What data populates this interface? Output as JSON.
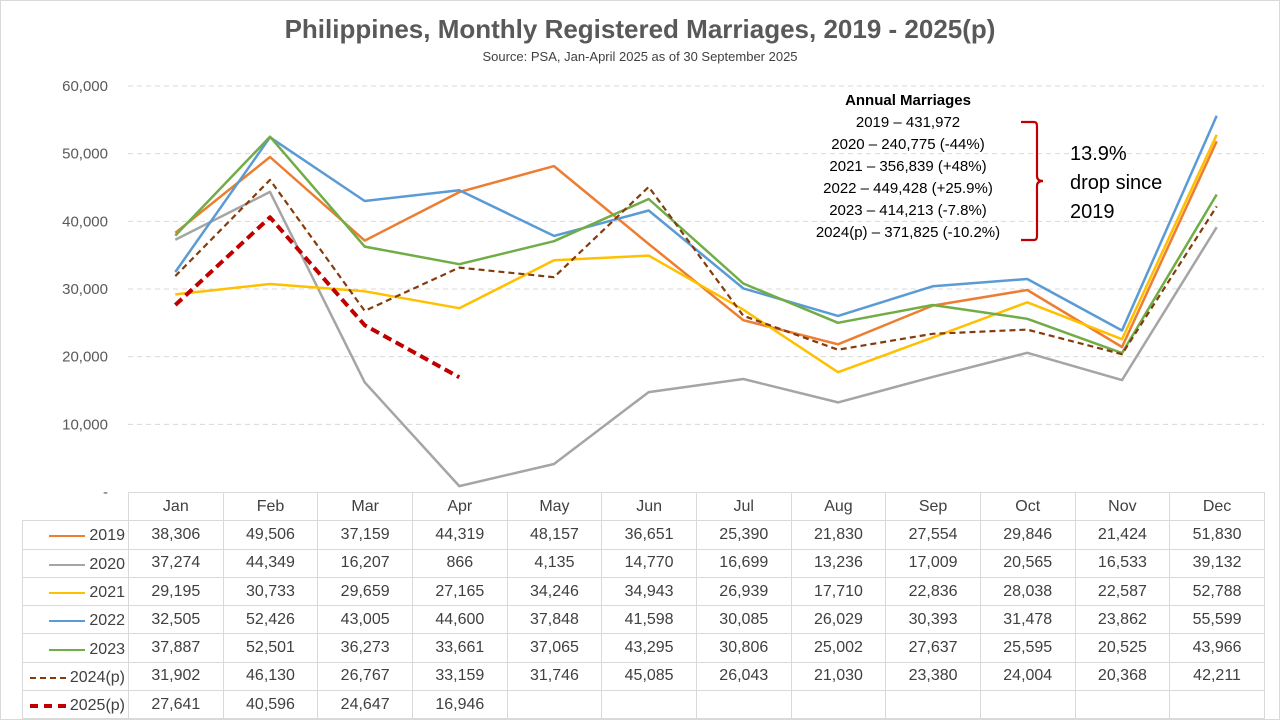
{
  "chart_data": {
    "type": "line",
    "title": "Philippines, Monthly Registered Marriages, 2019 - 2025(p)",
    "subtitle": "Source: PSA, Jan-April 2025 as of 30 September 2025",
    "categories": [
      "Jan",
      "Feb",
      "Mar",
      "Apr",
      "May",
      "Jun",
      "Jul",
      "Aug",
      "Sep",
      "Oct",
      "Nov",
      "Dec"
    ],
    "ylim": [
      0,
      60000
    ],
    "yticks": [
      0,
      10000,
      20000,
      30000,
      40000,
      50000,
      60000
    ],
    "ytick_labels": [
      "-",
      "10,000",
      "20,000",
      "30,000",
      "40,000",
      "50,000",
      "60,000"
    ],
    "grid": true,
    "series": [
      {
        "name": "2019",
        "color": "#ed7d31",
        "dash": "solid",
        "values": [
          38306,
          49506,
          37159,
          44319,
          48157,
          36651,
          25390,
          21830,
          27554,
          29846,
          21424,
          51830
        ]
      },
      {
        "name": "2020",
        "color": "#a5a5a5",
        "dash": "solid",
        "values": [
          37274,
          44349,
          16207,
          866,
          4135,
          14770,
          16699,
          13236,
          17009,
          20565,
          16533,
          39132
        ]
      },
      {
        "name": "2021",
        "color": "#ffc000",
        "dash": "solid",
        "values": [
          29195,
          30733,
          29659,
          27165,
          34246,
          34943,
          26939,
          17710,
          22836,
          28038,
          22587,
          52788
        ]
      },
      {
        "name": "2022",
        "color": "#5b9bd5",
        "dash": "solid",
        "values": [
          32505,
          52426,
          43005,
          44600,
          37848,
          41598,
          30085,
          26029,
          30393,
          31478,
          23862,
          55599
        ]
      },
      {
        "name": "2023",
        "color": "#70ad47",
        "dash": "solid",
        "values": [
          37887,
          52501,
          36273,
          33661,
          37065,
          43295,
          30806,
          25002,
          27637,
          25595,
          20525,
          43966
        ]
      },
      {
        "name": "2024(p)",
        "color": "#843c0c",
        "dash": "dashed",
        "values": [
          31902,
          46130,
          26767,
          33159,
          31746,
          45085,
          26043,
          21030,
          23380,
          24004,
          20368,
          42211
        ]
      },
      {
        "name": "2025(p)",
        "color": "#c00000",
        "dash": "dashed-bold",
        "values": [
          27641,
          40596,
          24647,
          16946,
          null,
          null,
          null,
          null,
          null,
          null,
          null,
          null
        ]
      }
    ],
    "table_cells": [
      [
        "38,306",
        "49,506",
        "37,159",
        "44,319",
        "48,157",
        "36,651",
        "25,390",
        "21,830",
        "27,554",
        "29,846",
        "21,424",
        "51,830"
      ],
      [
        "37,274",
        "44,349",
        "16,207",
        "866",
        "4,135",
        "14,770",
        "16,699",
        "13,236",
        "17,009",
        "20,565",
        "16,533",
        "39,132"
      ],
      [
        "29,195",
        "30,733",
        "29,659",
        "27,165",
        "34,246",
        "34,943",
        "26,939",
        "17,710",
        "22,836",
        "28,038",
        "22,587",
        "52,788"
      ],
      [
        "32,505",
        "52,426",
        "43,005",
        "44,600",
        "37,848",
        "41,598",
        "30,085",
        "26,029",
        "30,393",
        "31,478",
        "23,862",
        "55,599"
      ],
      [
        "37,887",
        "52,501",
        "36,273",
        "33,661",
        "37,065",
        "43,295",
        "30,806",
        "25,002",
        "27,637",
        "25,595",
        "20,525",
        "43,966"
      ],
      [
        "31,902",
        "46,130",
        "26,767",
        "33,159",
        "31,746",
        "45,085",
        "26,043",
        "21,030",
        "23,380",
        "24,004",
        "20,368",
        "42,211"
      ],
      [
        "27,641",
        "40,596",
        "24,647",
        "16,946",
        "",
        "",
        "",
        "",
        "",
        "",
        "",
        ""
      ]
    ],
    "annotations": {
      "annual_header": "Annual Marriages",
      "annual_lines": [
        "2019 – 431,972",
        "2020 – 240,775 (-44%)",
        "2021 – 356,839 (+48%)",
        "2022 – 449,428 (+25.9%)",
        "2023 – 414,213 (-7.8%)",
        "2024(p) – 371,825 (-10.2%)"
      ],
      "drop_note": [
        "13.9%",
        "drop since",
        "2019"
      ],
      "brace_color": "#c00000"
    }
  }
}
